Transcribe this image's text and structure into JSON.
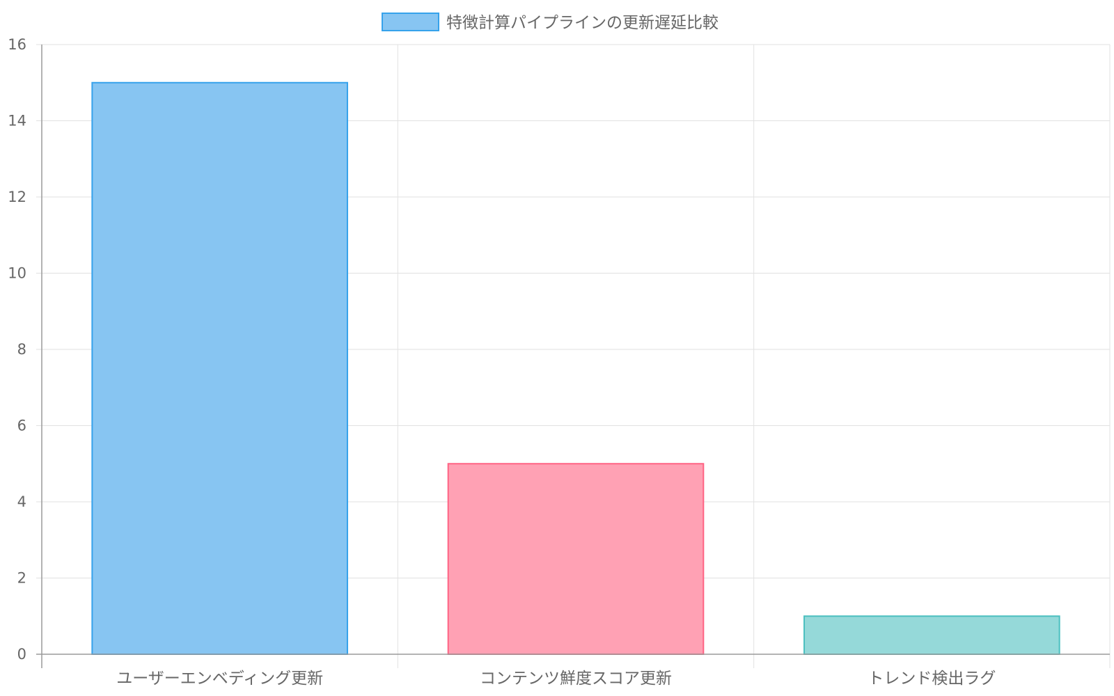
{
  "chart_data": {
    "type": "bar",
    "categories": [
      "ユーザーエンベディング更新",
      "コンテンツ鮮度スコア更新",
      "トレンド検出ラグ"
    ],
    "series": [
      {
        "name": "特徴計算パイプラインの更新遅延比較",
        "values": [
          15,
          5,
          1
        ]
      }
    ],
    "ylim": [
      0,
      16
    ],
    "yticks": [
      0,
      2,
      4,
      6,
      8,
      10,
      12,
      14,
      16
    ],
    "grid": true,
    "legend_position": "top-center",
    "colors": {
      "fills": [
        "#87c5f2",
        "#ffa1b4",
        "#95d9d9"
      ],
      "borders": [
        "#36a2eb",
        "#ff6384",
        "#4bc0c0"
      ],
      "legend_fill": "#87c5f2",
      "legend_border": "#36a2eb",
      "grid": "#e1e1e1",
      "axis": "#9a9a9a",
      "text": "#666666"
    }
  }
}
